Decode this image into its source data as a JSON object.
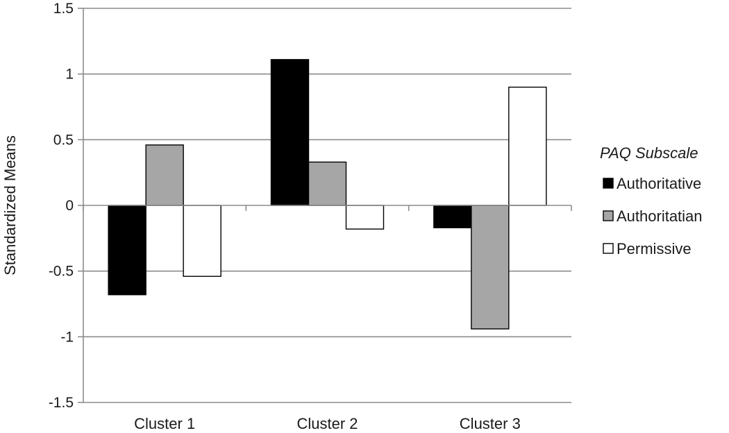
{
  "chart_data": {
    "type": "bar",
    "title": "",
    "xlabel": "",
    "ylabel": "Standardized Means",
    "ylim": [
      -1.5,
      1.5
    ],
    "yticks": [
      1.5,
      1,
      0.5,
      0,
      -0.5,
      -1,
      -1.5
    ],
    "ytick_labels": [
      "1.5",
      "1",
      "0.5",
      "0",
      "-0.5",
      "-1",
      "-1.5"
    ],
    "grid": true,
    "legend_placement": "right",
    "legend_title": "PAQ Subscale",
    "categories": [
      "Cluster 1",
      "Cluster 2",
      "Cluster 3"
    ],
    "series": [
      {
        "name": "Authoritative",
        "color": "#000000",
        "values": [
          -0.68,
          1.11,
          -0.17
        ]
      },
      {
        "name": "Authoritatian",
        "color": "#a6a6a6",
        "values": [
          0.46,
          0.33,
          -0.94
        ]
      },
      {
        "name": "Permissive",
        "color": "#ffffff",
        "values": [
          -0.54,
          -0.18,
          0.9
        ]
      }
    ]
  }
}
